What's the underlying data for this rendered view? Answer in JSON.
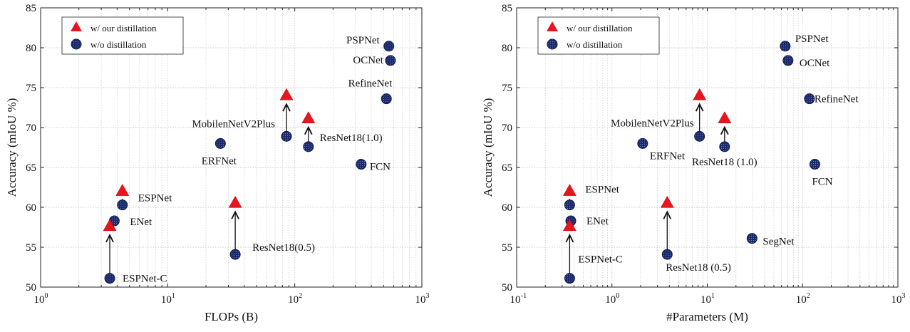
{
  "colors": {
    "distilled": "#e8141e",
    "baseline": "#1b2a6b",
    "grid": "#c8c8c8"
  },
  "chart_data": [
    {
      "type": "scatter",
      "xscale": "log",
      "xlabel": "FLOPs (B)",
      "ylabel": "Accuracy (mIoU %)",
      "xlim": [
        1,
        1000
      ],
      "ylim": [
        50,
        85
      ],
      "xticks": [
        {
          "v": 1,
          "base": "10",
          "exp": "0"
        },
        {
          "v": 10,
          "base": "10",
          "exp": "1"
        },
        {
          "v": 100,
          "base": "10",
          "exp": "2"
        },
        {
          "v": 1000,
          "base": "10",
          "exp": "3"
        }
      ],
      "yticks": [
        50,
        55,
        60,
        65,
        70,
        75,
        80,
        85
      ],
      "legend": {
        "position": "top-left",
        "entries": [
          {
            "marker": "triangle",
            "label": "w/ our distillation"
          },
          {
            "marker": "circle",
            "label": "w/o distillation"
          }
        ]
      },
      "series": [
        {
          "name": "w/ our distillation",
          "marker": "triangle",
          "points": [
            {
              "x": 3.5,
              "y": 57.6
            },
            {
              "x": 4.4,
              "y": 62.0
            },
            {
              "x": 34,
              "y": 60.5
            },
            {
              "x": 86,
              "y": 74.0
            },
            {
              "x": 128,
              "y": 71.1
            }
          ]
        },
        {
          "name": "w/o distillation",
          "marker": "circle",
          "points": [
            {
              "x": 3.5,
              "y": 51.1,
              "label": "ESPNet-C"
            },
            {
              "x": 3.8,
              "y": 58.3,
              "label": "ENet"
            },
            {
              "x": 4.4,
              "y": 60.3,
              "label": "ESPNet"
            },
            {
              "x": 34,
              "y": 54.1,
              "label": "ResNet18(0.5)"
            },
            {
              "x": 26,
              "y": 68.0,
              "label": "ERFNet"
            },
            {
              "x": 86,
              "y": 68.9,
              "label": "MobilenNetV2Plus"
            },
            {
              "x": 128,
              "y": 67.6,
              "label": "ResNet18(1.0)"
            },
            {
              "x": 333,
              "y": 65.4,
              "label": "FCN"
            },
            {
              "x": 526,
              "y": 73.6,
              "label": "RefineNet"
            },
            {
              "x": 566,
              "y": 78.4,
              "label": "OCNet"
            },
            {
              "x": 550,
              "y": 80.2,
              "label": "PSPNet"
            }
          ]
        }
      ],
      "arrows": [
        {
          "from": [
            3.5,
            51.1
          ],
          "to": [
            3.5,
            57.6
          ]
        },
        {
          "from": [
            4.4,
            60.3
          ],
          "to": [
            4.4,
            62.0
          ]
        },
        {
          "from": [
            34,
            54.1
          ],
          "to": [
            34,
            60.5
          ]
        },
        {
          "from": [
            86,
            68.9
          ],
          "to": [
            86,
            74.0
          ]
        },
        {
          "from": [
            128,
            67.6
          ],
          "to": [
            128,
            71.1
          ]
        }
      ]
    },
    {
      "type": "scatter",
      "xscale": "log",
      "xlabel": "#Parameters (M)",
      "ylabel": "Accuracy (mIoU %)",
      "xlim": [
        0.1,
        1000
      ],
      "ylim": [
        50,
        85
      ],
      "xticks": [
        {
          "v": 0.1,
          "base": "10",
          "exp": "-1"
        },
        {
          "v": 1,
          "base": "10",
          "exp": "0"
        },
        {
          "v": 10,
          "base": "10",
          "exp": "1"
        },
        {
          "v": 100,
          "base": "10",
          "exp": "2"
        },
        {
          "v": 1000,
          "base": "10",
          "exp": "3"
        }
      ],
      "yticks": [
        50,
        55,
        60,
        65,
        70,
        75,
        80,
        85
      ],
      "legend": {
        "position": "top-left",
        "entries": [
          {
            "marker": "triangle",
            "label": "w/ our distillation"
          },
          {
            "marker": "circle",
            "label": "w/o distillation"
          }
        ]
      },
      "series": [
        {
          "name": "w/ our distillation",
          "marker": "triangle",
          "points": [
            {
              "x": 0.36,
              "y": 57.6
            },
            {
              "x": 0.36,
              "y": 62.0
            },
            {
              "x": 3.8,
              "y": 60.5
            },
            {
              "x": 8.3,
              "y": 74.0
            },
            {
              "x": 15.2,
              "y": 71.1
            }
          ]
        },
        {
          "name": "w/o distillation",
          "marker": "circle",
          "points": [
            {
              "x": 0.36,
              "y": 51.1,
              "label": "ESPNet-C"
            },
            {
              "x": 0.37,
              "y": 58.3,
              "label": "ENet"
            },
            {
              "x": 0.36,
              "y": 60.3,
              "label": "ESPNet"
            },
            {
              "x": 3.8,
              "y": 54.1,
              "label": "ResNet18 (0.5)"
            },
            {
              "x": 2.1,
              "y": 68.0,
              "label": "ERFNet"
            },
            {
              "x": 8.3,
              "y": 68.9,
              "label": "MobilenNetV2Plus"
            },
            {
              "x": 15.2,
              "y": 67.6,
              "label": "ResNet18 (1.0)"
            },
            {
              "x": 29.5,
              "y": 56.1,
              "label": "SegNet"
            },
            {
              "x": 134.5,
              "y": 65.4,
              "label": "FCN"
            },
            {
              "x": 118,
              "y": 73.6,
              "label": "RefineNet"
            },
            {
              "x": 70.4,
              "y": 78.4,
              "label": "OCNet"
            },
            {
              "x": 65.7,
              "y": 80.2,
              "label": "PSPNet"
            }
          ]
        }
      ],
      "arrows": [
        {
          "from": [
            0.36,
            51.1
          ],
          "to": [
            0.36,
            57.6
          ]
        },
        {
          "from": [
            0.36,
            60.3
          ],
          "to": [
            0.36,
            62.0
          ]
        },
        {
          "from": [
            3.8,
            54.1
          ],
          "to": [
            3.8,
            60.5
          ]
        },
        {
          "from": [
            8.3,
            68.9
          ],
          "to": [
            8.3,
            74.0
          ]
        },
        {
          "from": [
            15.2,
            67.6
          ],
          "to": [
            15.2,
            71.1
          ]
        }
      ]
    }
  ]
}
